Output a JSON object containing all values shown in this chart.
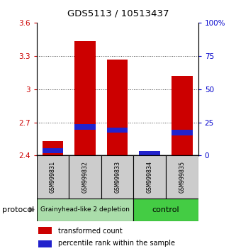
{
  "title": "GDS5113 / 10513437",
  "samples": [
    "GSM999831",
    "GSM999832",
    "GSM999833",
    "GSM999834",
    "GSM999835"
  ],
  "red_bar_bottom": [
    2.4,
    2.4,
    2.4,
    2.4,
    2.4
  ],
  "red_bar_top": [
    2.53,
    3.43,
    3.265,
    2.43,
    3.12
  ],
  "blue_bar_bottom": [
    2.42,
    2.635,
    2.61,
    2.405,
    2.585
  ],
  "blue_bar_top": [
    2.465,
    2.685,
    2.655,
    2.44,
    2.635
  ],
  "ylim_left": [
    2.4,
    3.6
  ],
  "yticks_left": [
    2.4,
    2.7,
    3.0,
    3.3,
    3.6
  ],
  "ytick_labels_left": [
    "2.4",
    "2.7",
    "3",
    "3.3",
    "3.6"
  ],
  "ylim_right": [
    0,
    100
  ],
  "yticks_right": [
    0,
    25,
    50,
    75,
    100
  ],
  "ytick_labels_right": [
    "0",
    "25",
    "50",
    "75",
    "100%"
  ],
  "bar_width": 0.65,
  "red_color": "#cc0000",
  "blue_color": "#2222cc",
  "grid_color": "#444444",
  "sample_box_color": "#cccccc",
  "group1_color": "#aaddaa",
  "group2_color": "#44cc44",
  "group1_label": "Grainyhead-like 2 depletion",
  "group2_label": "control",
  "group1_indices": [
    0,
    1,
    2
  ],
  "group2_indices": [
    3,
    4
  ]
}
